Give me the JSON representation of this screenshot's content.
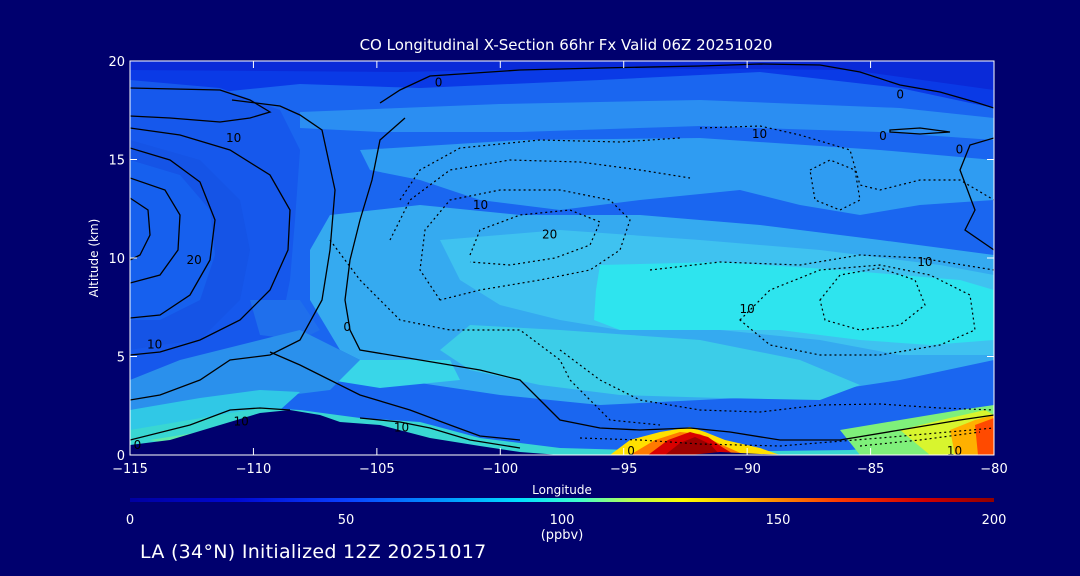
{
  "chart_data": {
    "type": "heatmap",
    "title": "CO Longitudinal X-Section 66hr  Fx Valid 06Z 20251020",
    "xlabel": "Longitude",
    "ylabel": "Altitude (km)",
    "xlim": [
      -115,
      -80
    ],
    "ylim": [
      0,
      20
    ],
    "x_ticks": [
      "−115",
      "−110",
      "−105",
      "−100",
      "−95",
      "−90",
      "−85",
      "−80"
    ],
    "x_tick_values": [
      -115,
      -110,
      -105,
      -100,
      -95,
      -90,
      -85,
      -80
    ],
    "y_ticks": [
      "0",
      "5",
      "10",
      "15",
      "20"
    ],
    "y_tick_values": [
      0,
      5,
      10,
      15,
      20
    ],
    "colorbar": {
      "ticks": [
        "0",
        "50",
        "100",
        "150",
        "200"
      ],
      "tick_values": [
        0,
        50,
        100,
        150,
        200
      ],
      "unit": "(ppbv)"
    },
    "contour_labels": [
      {
        "text": "0",
        "lon": -102.5,
        "alt": 18.9
      },
      {
        "text": "0",
        "lon": -83.8,
        "alt": 18.3
      },
      {
        "text": "0",
        "lon": -84.5,
        "alt": 16.2
      },
      {
        "text": "0",
        "lon": -81.4,
        "alt": 15.5
      },
      {
        "text": "10",
        "lon": -110.8,
        "alt": 16.1
      },
      {
        "text": "10",
        "lon": -89.5,
        "alt": 16.3
      },
      {
        "text": "10",
        "lon": -100.8,
        "alt": 12.7
      },
      {
        "text": "20",
        "lon": -98.0,
        "alt": 11.2
      },
      {
        "text": "20",
        "lon": -112.4,
        "alt": 9.9
      },
      {
        "text": "10",
        "lon": -82.8,
        "alt": 9.8
      },
      {
        "text": "10",
        "lon": -90.0,
        "alt": 7.4
      },
      {
        "text": "0",
        "lon": -106.2,
        "alt": 6.5
      },
      {
        "text": "10",
        "lon": -114.0,
        "alt": 5.6
      },
      {
        "text": "10",
        "lon": -110.5,
        "alt": 1.7
      },
      {
        "text": "10",
        "lon": -104.0,
        "alt": 1.4
      },
      {
        "text": "0",
        "lon": -114.7,
        "alt": 0.5
      },
      {
        "text": "0",
        "lon": -94.7,
        "alt": 0.2
      },
      {
        "text": "10",
        "lon": -81.6,
        "alt": 0.2
      }
    ]
  },
  "footer": "LA (34°N) Initialized 12Z 20251017"
}
